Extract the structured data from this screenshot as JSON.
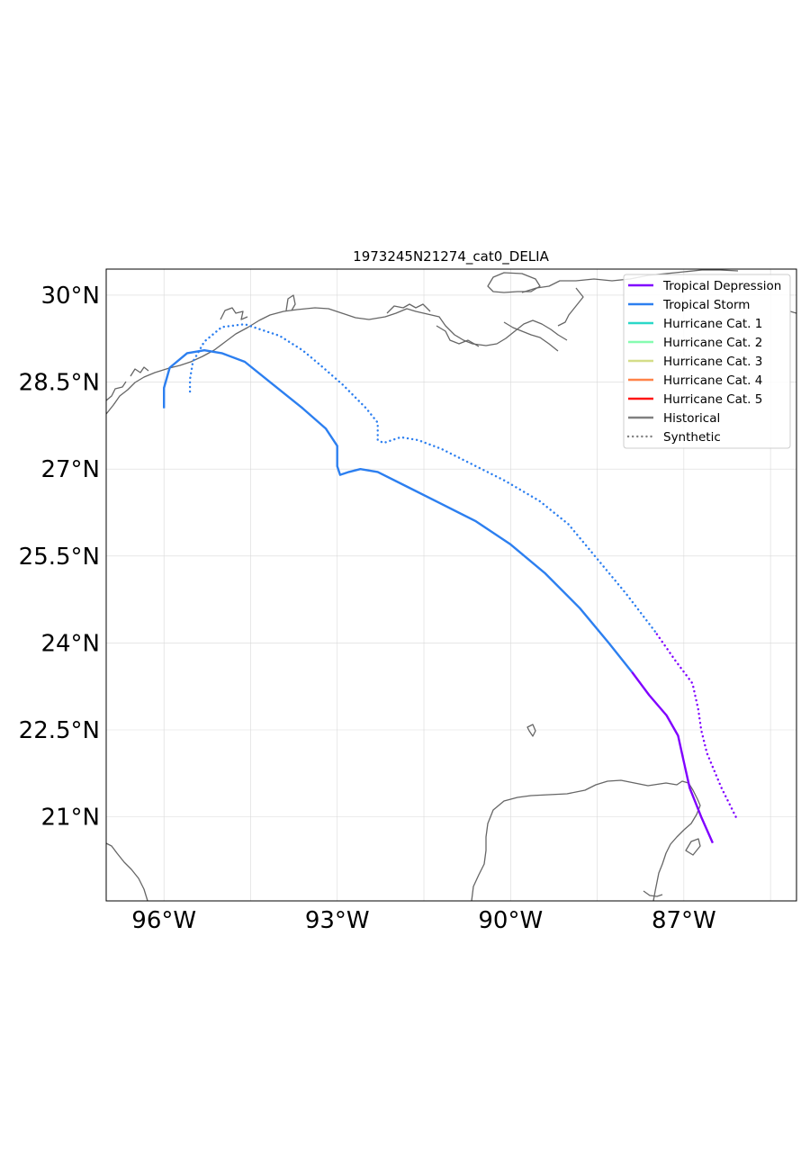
{
  "title": "1973245N21274_cat0_DELIA",
  "extent": {
    "lon_min": -97.0,
    "lon_max": -85.05,
    "lat_min": 19.55,
    "lat_max": 30.45
  },
  "x_ticks": [
    {
      "lon": -96,
      "label": "96°W"
    },
    {
      "lon": -93,
      "label": "93°W"
    },
    {
      "lon": -90,
      "label": "90°W"
    },
    {
      "lon": -87,
      "label": "87°W"
    }
  ],
  "y_ticks": [
    {
      "lat": 30,
      "label": "30°N"
    },
    {
      "lat": 28.5,
      "label": "28.5°N"
    },
    {
      "lat": 27,
      "label": "27°N"
    },
    {
      "lat": 25.5,
      "label": "25.5°N"
    },
    {
      "lat": 24,
      "label": "24°N"
    },
    {
      "lat": 22.5,
      "label": "22.5°N"
    },
    {
      "lat": 21,
      "label": "21°N"
    }
  ],
  "grid_lons": [
    -96,
    -94.5,
    -93,
    -91.5,
    -90,
    -88.5,
    -87,
    -85.5
  ],
  "grid_lats": [
    30,
    28.5,
    27,
    25.5,
    24,
    22.5,
    21
  ],
  "legend": {
    "entries": [
      {
        "label": "Tropical Depression",
        "color": "#8000ff",
        "style": "solid"
      },
      {
        "label": "Tropical Storm",
        "color": "#2c7ff0",
        "style": "solid"
      },
      {
        "label": "Hurricane Cat. 1",
        "color": "#2ad8c8",
        "style": "solid"
      },
      {
        "label": "Hurricane Cat. 2",
        "color": "#86fcb0",
        "style": "solid"
      },
      {
        "label": "Hurricane Cat. 3",
        "color": "#d4dd88",
        "style": "solid"
      },
      {
        "label": "Hurricane Cat. 4",
        "color": "#ff8248",
        "style": "solid"
      },
      {
        "label": "Hurricane Cat. 5",
        "color": "#ff1414",
        "style": "solid"
      },
      {
        "label": "Historical",
        "color": "#808080",
        "style": "solid"
      },
      {
        "label": "Synthetic",
        "color": "#808080",
        "style": "dotted"
      }
    ]
  },
  "tracks": [
    {
      "type": "Historical",
      "segments": [
        {
          "category": "Tropical Depression",
          "color": "#8000ff",
          "points": [
            [
              -86.5,
              20.55
            ],
            [
              -86.7,
              21.0
            ],
            [
              -86.9,
              21.5
            ],
            [
              -87.0,
              21.95
            ],
            [
              -87.1,
              22.4
            ],
            [
              -87.3,
              22.75
            ],
            [
              -87.6,
              23.1
            ],
            [
              -87.9,
              23.5
            ]
          ]
        },
        {
          "category": "Tropical Storm",
          "color": "#2c7ff0",
          "points": [
            [
              -87.9,
              23.5
            ],
            [
              -88.3,
              24.0
            ],
            [
              -88.8,
              24.6
            ],
            [
              -89.4,
              25.2
            ],
            [
              -90.0,
              25.7
            ],
            [
              -90.6,
              26.1
            ],
            [
              -91.2,
              26.4
            ],
            [
              -91.8,
              26.7
            ],
            [
              -92.3,
              26.95
            ],
            [
              -92.6,
              27.0
            ],
            [
              -92.8,
              26.95
            ],
            [
              -92.95,
              26.9
            ],
            [
              -93.0,
              27.05
            ],
            [
              -93.0,
              27.4
            ],
            [
              -93.2,
              27.7
            ],
            [
              -93.6,
              28.05
            ],
            [
              -94.1,
              28.45
            ],
            [
              -94.6,
              28.85
            ],
            [
              -95.0,
              29.0
            ],
            [
              -95.3,
              29.05
            ],
            [
              -95.6,
              29.0
            ],
            [
              -95.9,
              28.75
            ],
            [
              -96.0,
              28.4
            ],
            [
              -96.0,
              28.05
            ]
          ]
        }
      ]
    },
    {
      "type": "Synthetic",
      "segments": [
        {
          "category": "Tropical Depression",
          "color": "#8000ff",
          "points": [
            [
              -86.1,
              21.0
            ],
            [
              -86.35,
              21.5
            ],
            [
              -86.6,
              22.1
            ],
            [
              -86.7,
              22.5
            ],
            [
              -86.75,
              22.85
            ],
            [
              -86.85,
              23.3
            ],
            [
              -87.15,
              23.7
            ],
            [
              -87.5,
              24.2
            ]
          ]
        },
        {
          "category": "Tropical Storm",
          "color": "#2c7ff0",
          "points": [
            [
              -87.5,
              24.2
            ],
            [
              -88.0,
              24.85
            ],
            [
              -88.5,
              25.45
            ],
            [
              -89.0,
              26.05
            ],
            [
              -89.5,
              26.45
            ],
            [
              -90.1,
              26.8
            ],
            [
              -90.7,
              27.1
            ],
            [
              -91.2,
              27.35
            ],
            [
              -91.6,
              27.5
            ],
            [
              -91.9,
              27.55
            ],
            [
              -92.2,
              27.45
            ],
            [
              -92.3,
              27.5
            ],
            [
              -92.3,
              27.8
            ],
            [
              -92.5,
              28.05
            ],
            [
              -92.9,
              28.45
            ],
            [
              -93.3,
              28.8
            ],
            [
              -93.6,
              29.05
            ],
            [
              -94.0,
              29.3
            ],
            [
              -94.6,
              29.5
            ],
            [
              -95.0,
              29.45
            ],
            [
              -95.3,
              29.2
            ],
            [
              -95.5,
              28.85
            ],
            [
              -95.55,
              28.55
            ],
            [
              -95.55,
              28.3
            ]
          ]
        }
      ]
    }
  ]
}
